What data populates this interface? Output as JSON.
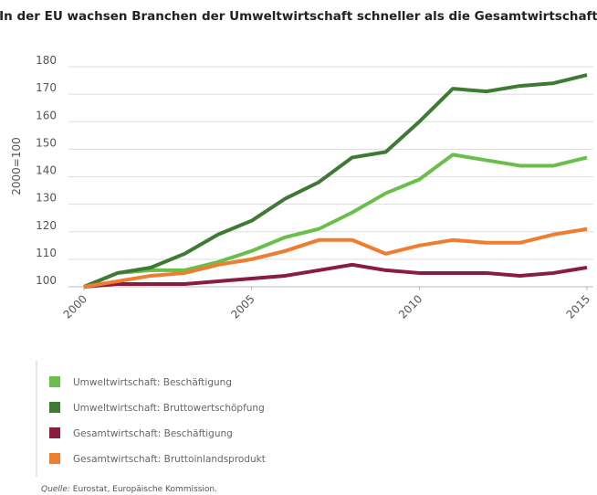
{
  "chart_data": {
    "type": "line",
    "title": "In der EU wachsen Branchen der Umweltwirtschaft schneller als die Gesamtwirtschaft",
    "ylabel": "2000=100",
    "x": [
      2000,
      2001,
      2002,
      2003,
      2004,
      2005,
      2006,
      2007,
      2008,
      2009,
      2010,
      2011,
      2012,
      2013,
      2014,
      2015
    ],
    "xlim": [
      2000,
      2015
    ],
    "xticks": [
      2000,
      2005,
      2010,
      2015
    ],
    "ylim": [
      100,
      180
    ],
    "yticks": [
      100,
      110,
      120,
      130,
      140,
      150,
      160,
      170,
      180
    ],
    "grid": true,
    "series": [
      {
        "name": "Umweltwirtschaft: Beschäftigung",
        "color": "#6abf4b",
        "values": [
          100,
          105,
          106,
          106,
          109,
          113,
          118,
          121,
          127,
          134,
          139,
          148,
          146,
          144,
          144,
          147
        ]
      },
      {
        "name": "Umweltwirtschaft: Bruttowertschöpfung",
        "color": "#3f7a35",
        "values": [
          100,
          105,
          107,
          112,
          119,
          124,
          132,
          138,
          147,
          149,
          160,
          172,
          171,
          173,
          174,
          177
        ]
      },
      {
        "name": "Gesamtwirtschaft: Beschäftigung",
        "color": "#8a1c3e",
        "values": [
          100,
          101,
          101,
          101,
          102,
          103,
          104,
          106,
          108,
          106,
          105,
          105,
          105,
          104,
          105,
          107
        ]
      },
      {
        "name": "Gesamtwirtschaft: Bruttoinlandsprodukt",
        "color": "#f07c30",
        "values": [
          100,
          102,
          104,
          105,
          108,
          110,
          113,
          117,
          117,
          112,
          115,
          117,
          116,
          116,
          119,
          121
        ]
      }
    ],
    "source_label": "Quelle:",
    "source_text": "Eurostat, Europäische Kommission."
  }
}
